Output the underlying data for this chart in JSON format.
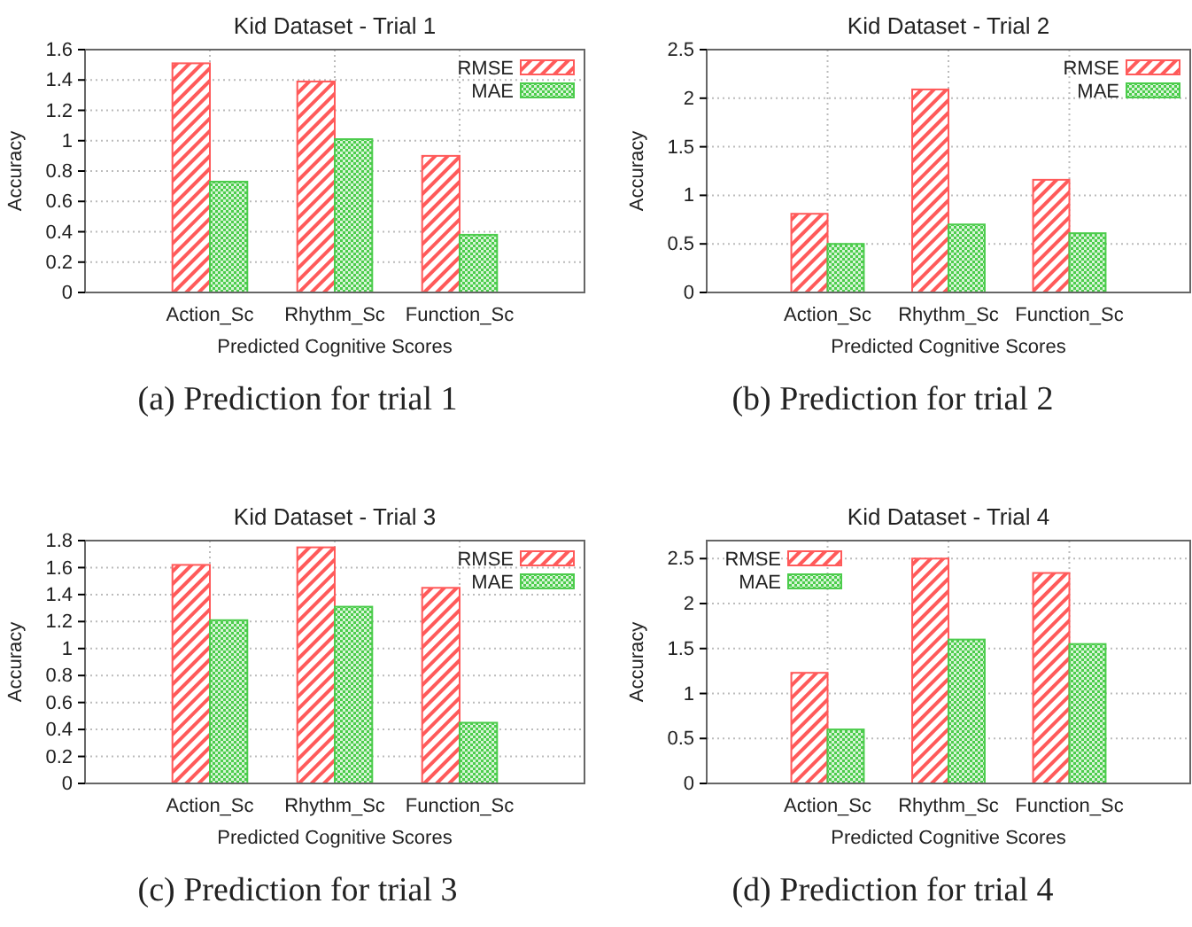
{
  "chart_data": [
    {
      "type": "bar",
      "title": "Kid Dataset - Trial 1",
      "xlabel": "Predicted Cognitive Scores",
      "ylabel": "Accuracy",
      "categories": [
        "Action_Sc",
        "Rhythm_Sc",
        "Function_Sc"
      ],
      "series": [
        {
          "name": "RMSE",
          "color": "#ff5a5a",
          "values": [
            1.51,
            1.39,
            0.9
          ]
        },
        {
          "name": "MAE",
          "color": "#4ccc4c",
          "values": [
            0.73,
            1.01,
            0.38
          ]
        }
      ],
      "ylim": [
        0,
        1.6
      ],
      "yticks": [
        0,
        0.2,
        0.4,
        0.6,
        0.8,
        1,
        1.2,
        1.4,
        1.6
      ],
      "grid": true,
      "legend": "top right",
      "annotations": [
        "(a) Prediction for trial 1"
      ]
    },
    {
      "type": "bar",
      "title": "Kid Dataset - Trial 2",
      "xlabel": "Predicted Cognitive Scores",
      "ylabel": "Accuracy",
      "categories": [
        "Action_Sc",
        "Rhythm_Sc",
        "Function_Sc"
      ],
      "series": [
        {
          "name": "RMSE",
          "color": "#ff5a5a",
          "values": [
            0.81,
            2.09,
            1.16
          ]
        },
        {
          "name": "MAE",
          "color": "#4ccc4c",
          "values": [
            0.5,
            0.7,
            0.61
          ]
        }
      ],
      "ylim": [
        0,
        2.5
      ],
      "yticks": [
        0,
        0.5,
        1,
        1.5,
        2,
        2.5
      ],
      "grid": true,
      "legend": "top right",
      "annotations": [
        "(b) Prediction for trial 2"
      ]
    },
    {
      "type": "bar",
      "title": "Kid Dataset - Trial 3",
      "xlabel": "Predicted Cognitive Scores",
      "ylabel": "Accuracy",
      "categories": [
        "Action_Sc",
        "Rhythm_Sc",
        "Function_Sc"
      ],
      "series": [
        {
          "name": "RMSE",
          "color": "#ff5a5a",
          "values": [
            1.62,
            1.75,
            1.45
          ]
        },
        {
          "name": "MAE",
          "color": "#4ccc4c",
          "values": [
            1.21,
            1.31,
            0.45
          ]
        }
      ],
      "ylim": [
        0,
        1.8
      ],
      "yticks": [
        0,
        0.2,
        0.4,
        0.6,
        0.8,
        1,
        1.2,
        1.4,
        1.6,
        1.8
      ],
      "grid": true,
      "legend": "top right",
      "annotations": [
        "(c) Prediction for trial 3"
      ]
    },
    {
      "type": "bar",
      "title": "Kid Dataset - Trial 4",
      "xlabel": "Predicted Cognitive Scores",
      "ylabel": "Accuracy",
      "categories": [
        "Action_Sc",
        "Rhythm_Sc",
        "Function_Sc"
      ],
      "series": [
        {
          "name": "RMSE",
          "color": "#ff5a5a",
          "values": [
            1.23,
            2.5,
            2.34
          ]
        },
        {
          "name": "MAE",
          "color": "#4ccc4c",
          "values": [
            0.6,
            1.6,
            1.55
          ]
        }
      ],
      "ylim": [
        0,
        2.7
      ],
      "yticks": [
        0,
        0.5,
        1,
        1.5,
        2,
        2.5
      ],
      "grid": true,
      "legend": "top left",
      "annotations": [
        "(d) Prediction for trial 4"
      ]
    }
  ]
}
